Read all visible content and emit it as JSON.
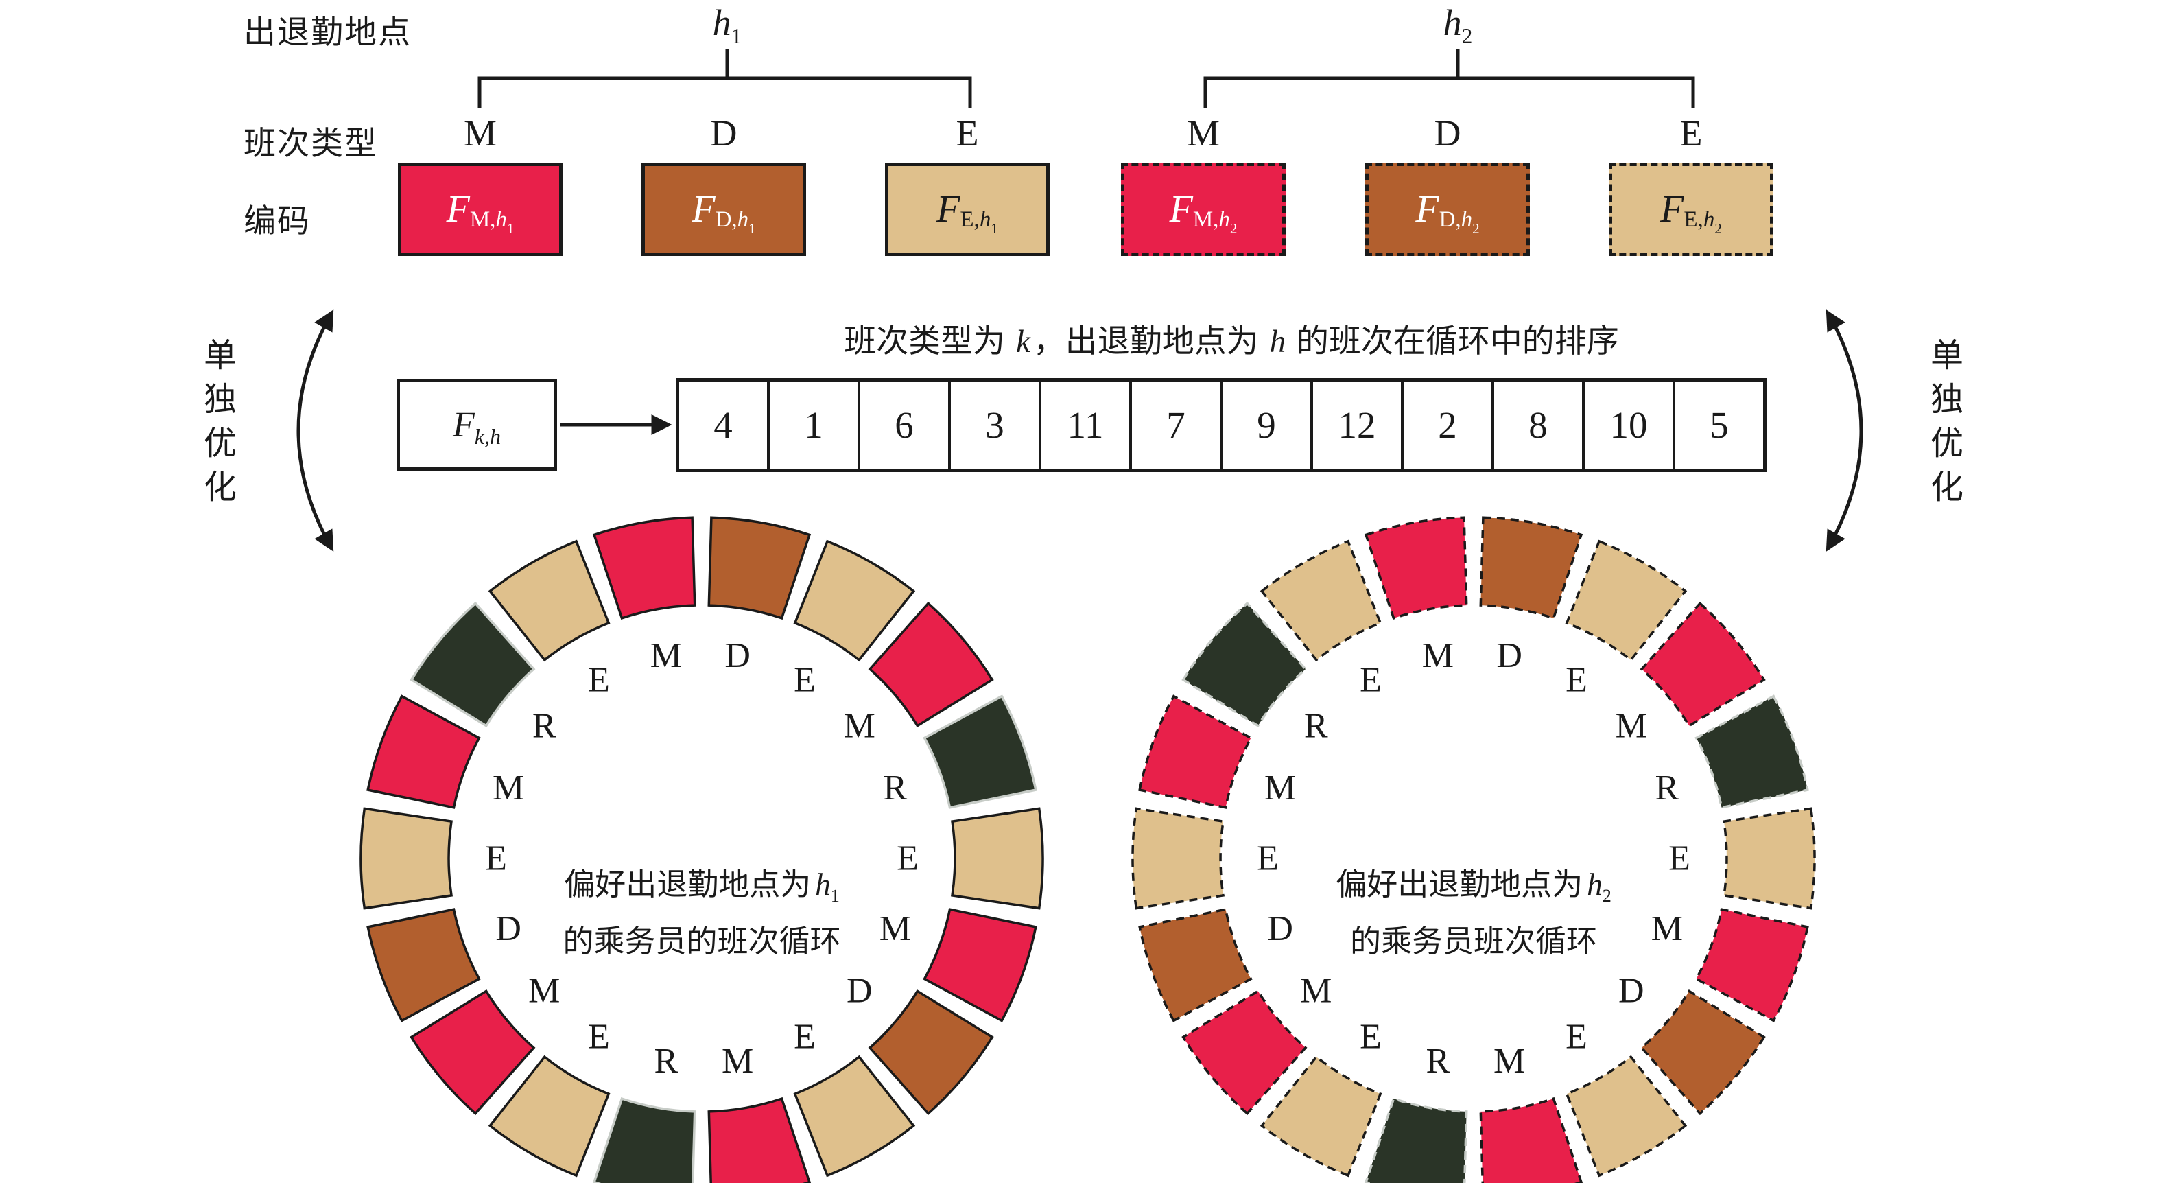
{
  "labels": {
    "location": "出退勤地点",
    "shift_type": "班次类型",
    "encoding": "编码",
    "optimize": "单独优化"
  },
  "groups": [
    {
      "id": "h1",
      "var": "h",
      "sub": "1",
      "shifts": [
        "M",
        "D",
        "E"
      ]
    },
    {
      "id": "h2",
      "var": "h",
      "sub": "2",
      "shifts": [
        "M",
        "D",
        "E"
      ]
    }
  ],
  "encoding_boxes": [
    {
      "main": "F",
      "sub_prefix": "M,",
      "var": "h",
      "idx": "1",
      "shift": "M",
      "dashed": false,
      "light_text": true
    },
    {
      "main": "F",
      "sub_prefix": "D,",
      "var": "h",
      "idx": "1",
      "shift": "D",
      "dashed": false,
      "light_text": true
    },
    {
      "main": "F",
      "sub_prefix": "E,",
      "var": "h",
      "idx": "1",
      "shift": "E",
      "dashed": false,
      "light_text": false
    },
    {
      "main": "F",
      "sub_prefix": "M,",
      "var": "h",
      "idx": "2",
      "shift": "M",
      "dashed": true,
      "light_text": true
    },
    {
      "main": "F",
      "sub_prefix": "D,",
      "var": "h",
      "idx": "2",
      "shift": "D",
      "dashed": true,
      "light_text": true
    },
    {
      "main": "F",
      "sub_prefix": "E,",
      "var": "h",
      "idx": "2",
      "shift": "E",
      "dashed": true,
      "light_text": false
    }
  ],
  "sequence": {
    "caption": {
      "p1": "班次类型为 ",
      "k": "k",
      "p2": "，出退勤地点为 ",
      "h": "h",
      "p3": " 的班次在循环中的排序"
    },
    "box": {
      "main": "F",
      "sub_k": "k,",
      "sub_h": "h"
    },
    "numbers": [
      "4",
      "1",
      "6",
      "3",
      "11",
      "7",
      "9",
      "12",
      "2",
      "8",
      "10",
      "5"
    ]
  },
  "circles": [
    {
      "line1_prefix": "偏好出退勤地点为",
      "var": "h",
      "sub": "1",
      "line2": "的乘务员的班次循环",
      "dashed": false,
      "segments": [
        "M",
        "D",
        "E",
        "M",
        "R",
        "E",
        "M",
        "D",
        "E",
        "M",
        "R",
        "E",
        "M",
        "D",
        "E",
        "M",
        "R",
        "E"
      ]
    },
    {
      "line1_prefix": "偏好出退勤地点为",
      "var": "h",
      "sub": "2",
      "line2": "的乘务员班次循环",
      "dashed": true,
      "segments": [
        "M",
        "D",
        "E",
        "M",
        "R",
        "E",
        "M",
        "D",
        "E",
        "M",
        "R",
        "E",
        "M",
        "D",
        "E",
        "M",
        "R",
        "E"
      ]
    }
  ],
  "legend_semantics": {
    "M": "M",
    "D": "D",
    "E": "E",
    "R": "R"
  },
  "colors": {
    "M": "#E8204A",
    "D": "#B25F2E",
    "E": "#DFC08C",
    "R": "#2A3427",
    "stroke": "#1A1A1A",
    "r_stroke": "#C7CCC7",
    "text": "#1A1A1A",
    "light_text": "#FFFFFF"
  }
}
